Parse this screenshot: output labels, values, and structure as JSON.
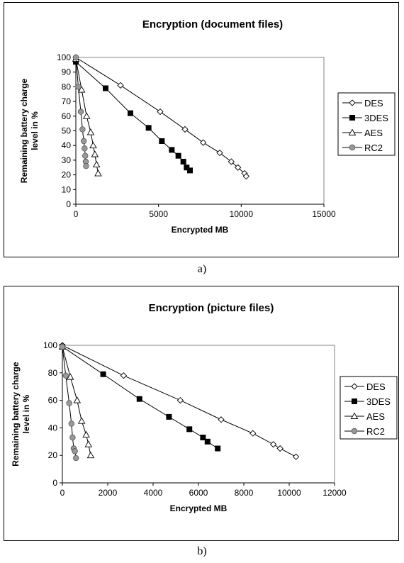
{
  "captions": [
    "a)",
    "b)"
  ],
  "chart_data": [
    {
      "type": "line",
      "title": "Encryption (document files)",
      "xlabel": "Encrypted MB",
      "ylabel_lines": [
        "Remaining battery charge",
        "level in %"
      ],
      "xlim": [
        0,
        15000
      ],
      "ylim": [
        0,
        100
      ],
      "xticks": [
        0,
        5000,
        10000,
        15000
      ],
      "yticks": [
        0,
        10,
        20,
        30,
        40,
        50,
        60,
        70,
        80,
        90,
        100
      ],
      "legend_position": "right",
      "grid": false,
      "series": [
        {
          "name": "DES",
          "marker": "diamond-open",
          "x": [
            0,
            2700,
            5100,
            6600,
            7700,
            8700,
            9400,
            9800,
            10200,
            10300
          ],
          "y": [
            100,
            81,
            63,
            51,
            42,
            35,
            29,
            25,
            21,
            19
          ]
        },
        {
          "name": "3DES",
          "marker": "square-filled",
          "x": [
            0,
            1800,
            3300,
            4400,
            5200,
            5800,
            6200,
            6500,
            6700,
            6900
          ],
          "y": [
            97,
            79,
            62,
            52,
            43,
            37,
            33,
            29,
            25,
            23
          ]
        },
        {
          "name": "AES",
          "marker": "triangle-open",
          "x": [
            0,
            350,
            650,
            900,
            1050,
            1150,
            1250,
            1350
          ],
          "y": [
            99,
            78,
            60,
            49,
            40,
            34,
            27,
            21
          ]
        },
        {
          "name": "RC2",
          "marker": "circle-filled",
          "x": [
            0,
            150,
            300,
            400,
            480,
            530,
            570,
            600,
            620
          ],
          "y": [
            100,
            80,
            63,
            51,
            43,
            38,
            33,
            29,
            26
          ]
        }
      ]
    },
    {
      "type": "line",
      "title": "Encryption (picture files)",
      "xlabel": "Encrypted MB",
      "ylabel_lines": [
        "Remaining battery charge",
        "level in %"
      ],
      "xlim": [
        0,
        12000
      ],
      "ylim": [
        0,
        100
      ],
      "xticks": [
        0,
        2000,
        4000,
        6000,
        8000,
        10000,
        12000
      ],
      "yticks": [
        0,
        20,
        40,
        60,
        80,
        100
      ],
      "legend_position": "right",
      "grid": false,
      "series": [
        {
          "name": "DES",
          "marker": "diamond-open",
          "x": [
            0,
            2700,
            5200,
            7000,
            8400,
            9300,
            9600,
            10300
          ],
          "y": [
            100,
            78,
            60,
            46,
            36,
            28,
            25,
            19
          ]
        },
        {
          "name": "3DES",
          "marker": "square-filled",
          "x": [
            0,
            1800,
            3400,
            4700,
            5600,
            6200,
            6400,
            6850
          ],
          "y": [
            99,
            79,
            61,
            48,
            39,
            33,
            30,
            25
          ]
        },
        {
          "name": "AES",
          "marker": "triangle-open",
          "x": [
            0,
            350,
            650,
            850,
            1050,
            1150,
            1250
          ],
          "y": [
            99,
            77,
            60,
            45,
            35,
            28,
            20
          ]
        },
        {
          "name": "RC2",
          "marker": "circle-filled",
          "x": [
            0,
            150,
            300,
            400,
            450,
            500,
            550,
            600
          ],
          "y": [
            99,
            78,
            58,
            43,
            33,
            25,
            23,
            18
          ]
        }
      ]
    }
  ]
}
